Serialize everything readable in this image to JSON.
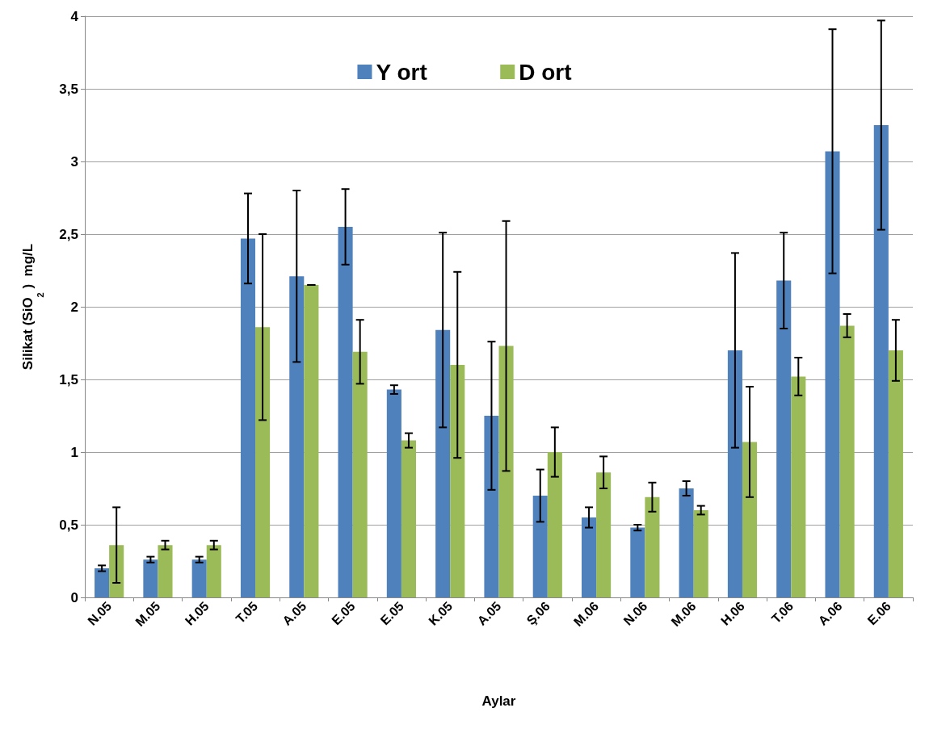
{
  "chart_data": {
    "type": "bar",
    "xlabel": "Aylar",
    "ylabel": "Silikat (SiO$_{2}$ )  mg/L",
    "categories": [
      "N.05",
      "M.05",
      "H.05",
      "T.05",
      "A.05",
      "E.05",
      "E.05",
      "K.05",
      "A.05",
      "Ş.06",
      "M.06",
      "N.06",
      "M.06",
      "H.06",
      "T.06",
      "A.06",
      "E.06"
    ],
    "series": [
      {
        "name": "Y ort",
        "color": "#4f81bd",
        "values": [
          0.2,
          0.26,
          0.26,
          2.47,
          2.21,
          2.55,
          1.43,
          1.84,
          1.25,
          0.7,
          0.55,
          0.48,
          0.75,
          1.7,
          2.18,
          3.07,
          3.25
        ],
        "errors": [
          0.02,
          0.02,
          0.02,
          0.31,
          0.59,
          0.26,
          0.03,
          0.67,
          0.51,
          0.18,
          0.07,
          0.02,
          0.05,
          0.67,
          0.33,
          0.84,
          0.72
        ]
      },
      {
        "name": "D ort",
        "color": "#9bbb59",
        "values": [
          0.36,
          0.36,
          0.36,
          1.86,
          2.15,
          1.69,
          1.08,
          1.6,
          1.73,
          1.0,
          0.86,
          0.69,
          0.6,
          1.07,
          1.52,
          1.87,
          1.7
        ],
        "errors": [
          0.26,
          0.03,
          0.03,
          0.64,
          0,
          0.22,
          0.05,
          0.64,
          0.86,
          0.17,
          0.11,
          0.1,
          0.03,
          0.38,
          0.13,
          0.08,
          0.21
        ]
      }
    ],
    "ylim": [
      0,
      4
    ],
    "yticks": [
      0,
      {
        "value": 0.5,
        "label": "0,5"
      },
      1,
      {
        "value": 1.5,
        "label": "1,5"
      },
      2,
      {
        "value": 2.5,
        "label": "2,5"
      },
      3,
      {
        "value": 3.5,
        "label": "3,5"
      },
      4
    ],
    "grid": "y",
    "legend": "top"
  }
}
